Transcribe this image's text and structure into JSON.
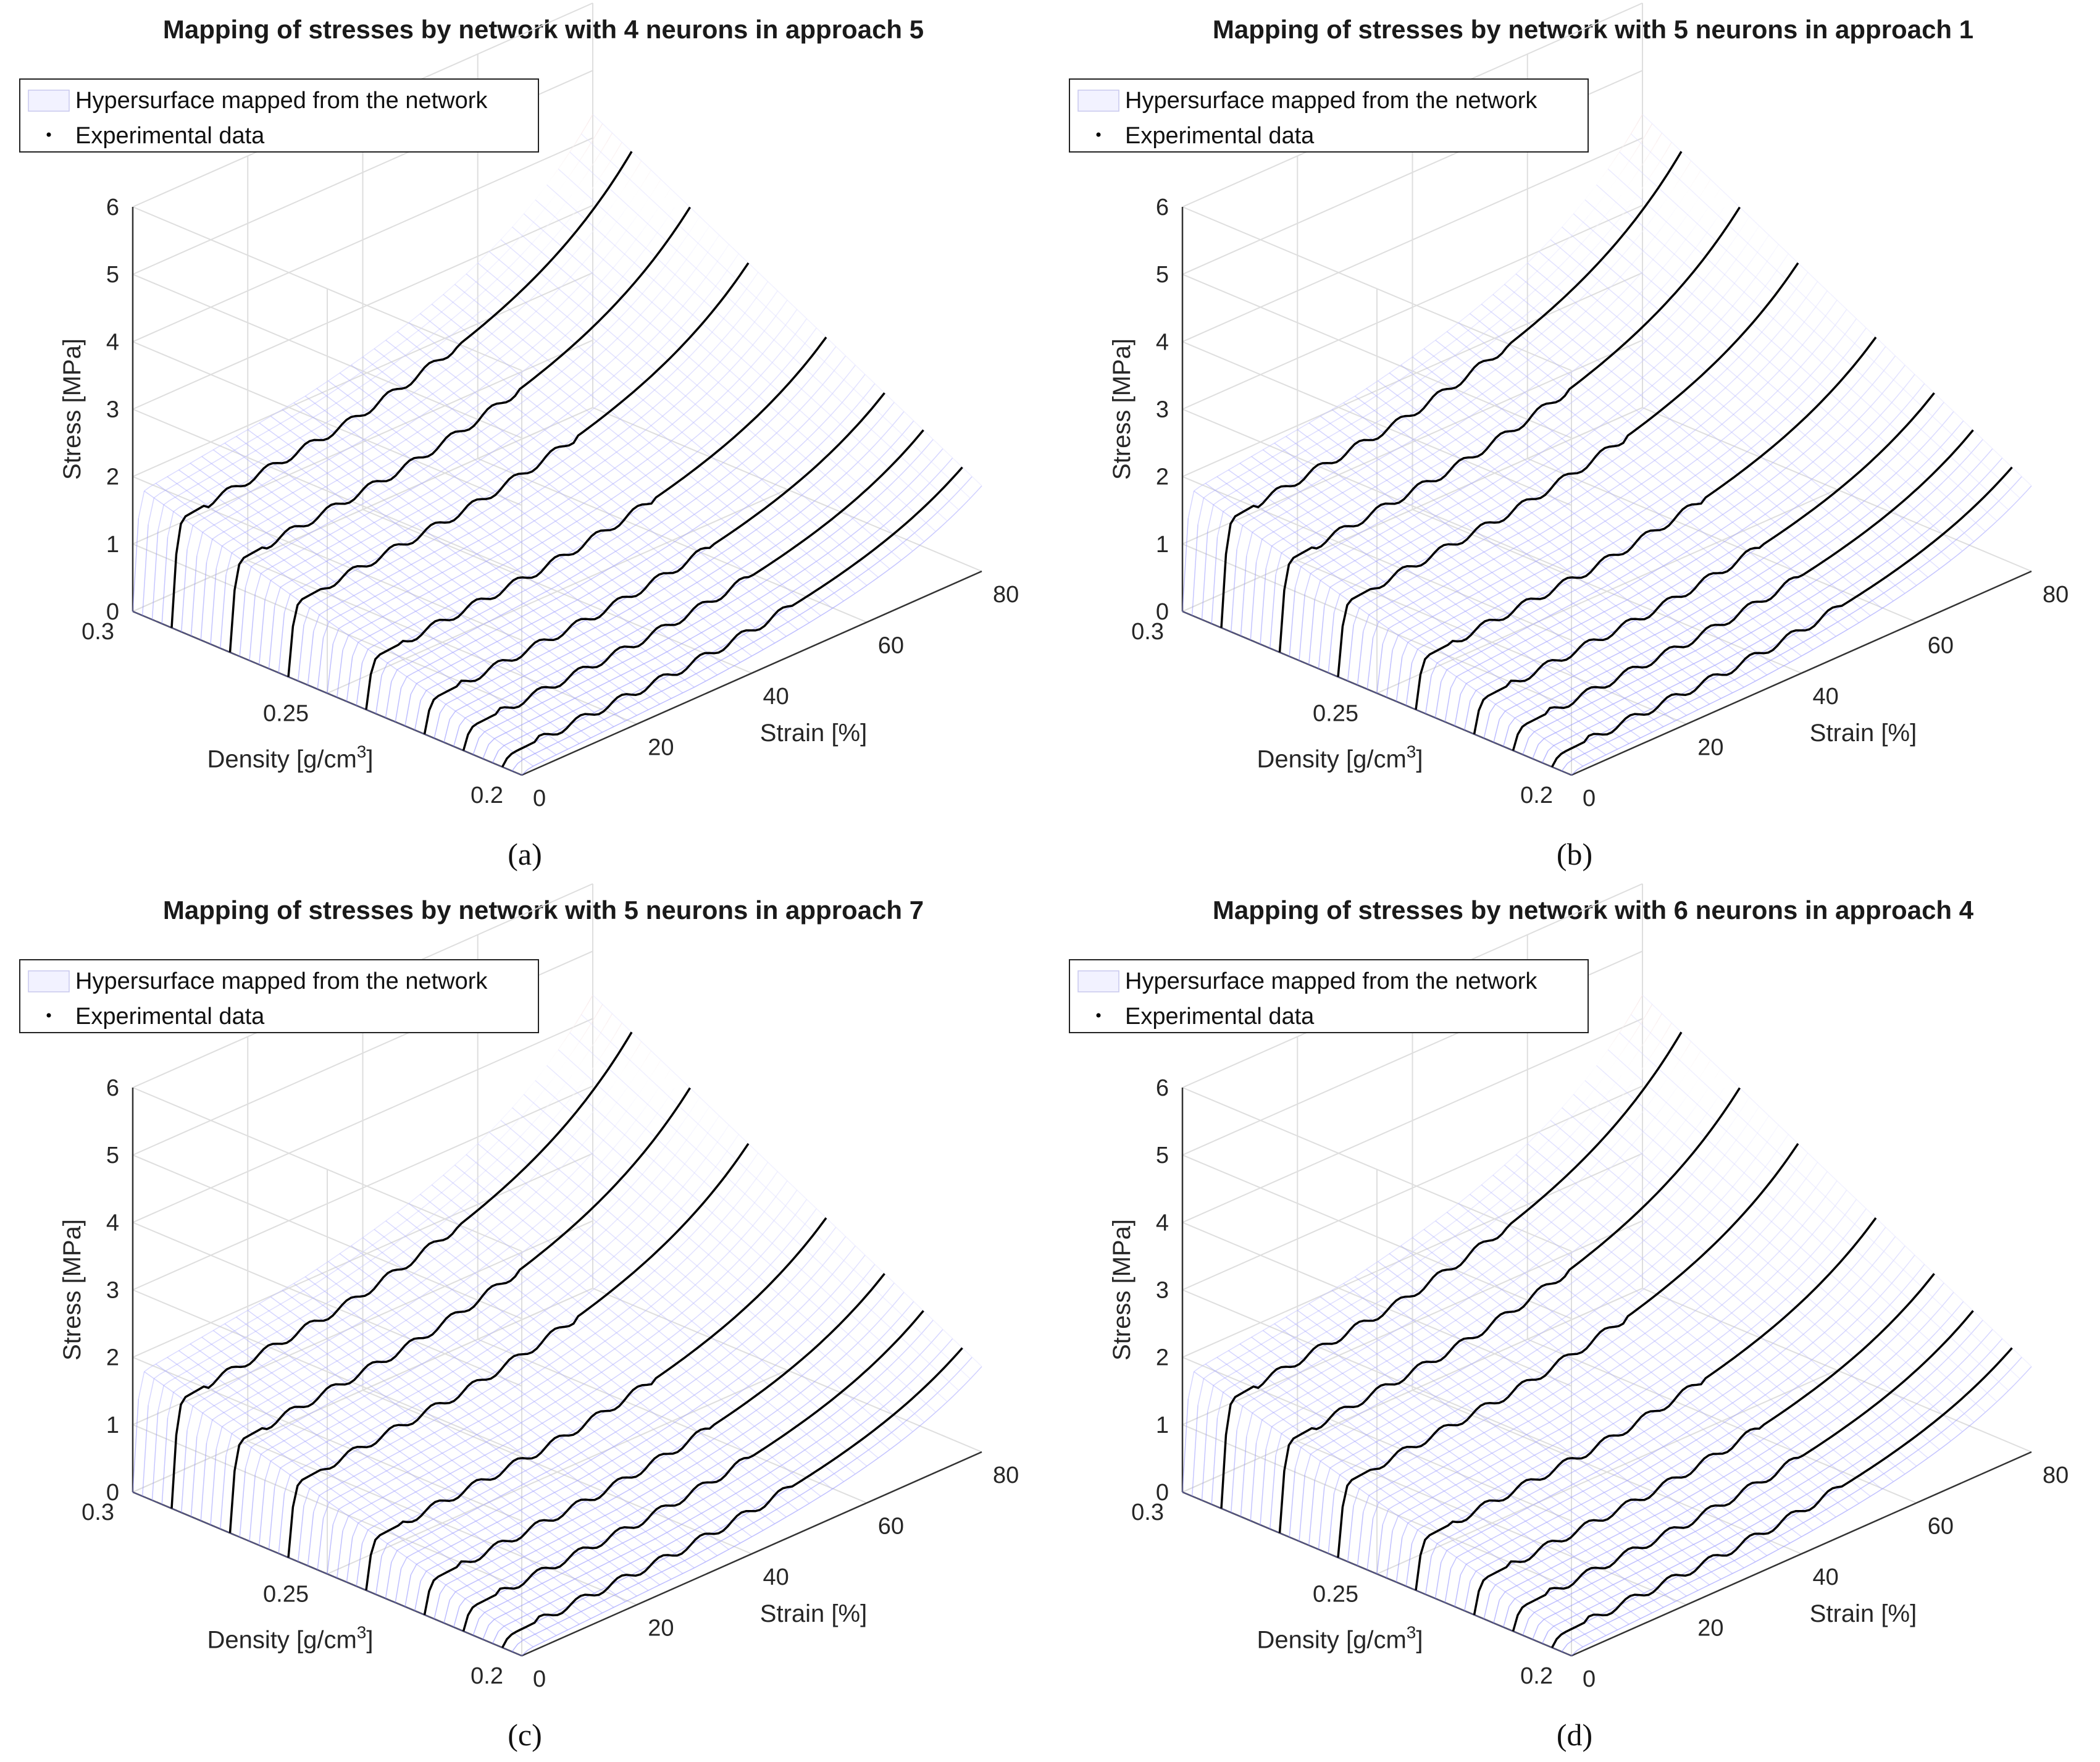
{
  "chart_data": [
    {
      "type": "surface",
      "panel_label": "(a)",
      "title": "Mapping of stresses by network with 4 neurons in approach 5",
      "legend": [
        "Hypersurface mapped from the network",
        "Experimental data"
      ],
      "xlabel": "Strain [%]",
      "ylabel": "Density [g/cm",
      "ylabel_sup": "3",
      "ylabel_end": "]",
      "zlabel": "Stress [MPa]",
      "x_ticks": [
        "0",
        "20",
        "40",
        "60",
        "80"
      ],
      "y_ticks": [
        "0.2",
        "0.25",
        "0.3"
      ],
      "z_ticks": [
        "0",
        "1",
        "2",
        "3",
        "4",
        "5",
        "6"
      ],
      "xlim": [
        0,
        80
      ],
      "ylim": [
        0.2,
        0.3
      ],
      "zlim": [
        0,
        6
      ],
      "experimental_densities": [
        0.205,
        0.215,
        0.225,
        0.24,
        0.26,
        0.275,
        0.29
      ],
      "colors": {
        "low": "#8080ff",
        "mid": "#ffffff",
        "high": "#c04040",
        "exp": "#000000"
      }
    },
    {
      "type": "surface",
      "panel_label": "(b)",
      "title": "Mapping of stresses by network with 5 neurons in approach 1",
      "legend": [
        "Hypersurface mapped from the network",
        "Experimental data"
      ],
      "xlabel": "Strain [%]",
      "ylabel": "Density [g/cm",
      "ylabel_sup": "3",
      "ylabel_end": "]",
      "zlabel": "Stress [MPa]",
      "x_ticks": [
        "0",
        "20",
        "40",
        "60",
        "80"
      ],
      "y_ticks": [
        "0.2",
        "0.25",
        "0.3"
      ],
      "z_ticks": [
        "0",
        "1",
        "2",
        "3",
        "4",
        "5",
        "6"
      ],
      "xlim": [
        0,
        80
      ],
      "ylim": [
        0.2,
        0.3
      ],
      "zlim": [
        0,
        6
      ],
      "experimental_densities": [
        0.205,
        0.215,
        0.225,
        0.24,
        0.26,
        0.275,
        0.29
      ],
      "colors": {
        "low": "#8080ff",
        "mid": "#ffffff",
        "high": "#c04040",
        "exp": "#000000"
      }
    },
    {
      "type": "surface",
      "panel_label": "(c)",
      "title": "Mapping of stresses by network with 5 neurons in approach 7",
      "legend": [
        "Hypersurface mapped from the network",
        "Experimental data"
      ],
      "xlabel": "Strain [%]",
      "ylabel": "Density [g/cm",
      "ylabel_sup": "3",
      "ylabel_end": "]",
      "zlabel": "Stress [MPa]",
      "x_ticks": [
        "0",
        "20",
        "40",
        "60",
        "80"
      ],
      "y_ticks": [
        "0.2",
        "0.25",
        "0.3"
      ],
      "z_ticks": [
        "0",
        "1",
        "2",
        "3",
        "4",
        "5",
        "6"
      ],
      "xlim": [
        0,
        80
      ],
      "ylim": [
        0.2,
        0.3
      ],
      "zlim": [
        0,
        6
      ],
      "experimental_densities": [
        0.205,
        0.215,
        0.225,
        0.24,
        0.26,
        0.275,
        0.29
      ],
      "colors": {
        "low": "#8080ff",
        "mid": "#ffffff",
        "high": "#c04040",
        "exp": "#000000"
      }
    },
    {
      "type": "surface",
      "panel_label": "(d)",
      "title": "Mapping of stresses by network with 6 neurons in approach 4",
      "legend": [
        "Hypersurface mapped from the network",
        "Experimental data"
      ],
      "xlabel": "Strain [%]",
      "ylabel": "Density [g/cm",
      "ylabel_sup": "3",
      "ylabel_end": "]",
      "zlabel": "Stress [MPa]",
      "x_ticks": [
        "0",
        "20",
        "40",
        "60",
        "80"
      ],
      "y_ticks": [
        "0.2",
        "0.25",
        "0.3"
      ],
      "z_ticks": [
        "0",
        "1",
        "2",
        "3",
        "4",
        "5",
        "6"
      ],
      "xlim": [
        0,
        80
      ],
      "ylim": [
        0.2,
        0.3
      ],
      "zlim": [
        0,
        6
      ],
      "experimental_densities": [
        0.205,
        0.215,
        0.225,
        0.24,
        0.26,
        0.275,
        0.29
      ],
      "colors": {
        "low": "#8080ff",
        "mid": "#ffffff",
        "high": "#c04040",
        "exp": "#000000"
      }
    }
  ]
}
